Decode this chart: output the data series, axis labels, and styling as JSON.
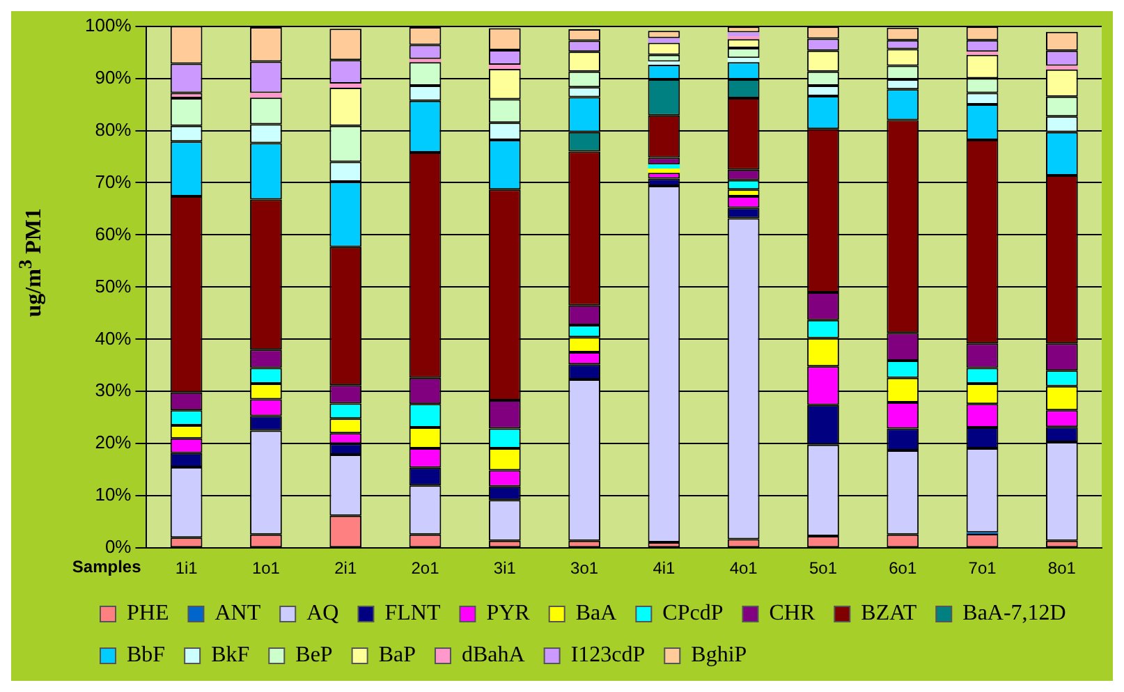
{
  "chart_data": {
    "type": "bar",
    "stacked": true,
    "xlabel": "Samples",
    "ylabel": "ug/m$^{3}$ PM1",
    "categories": [
      "1i1",
      "1o1",
      "2i1",
      "2o1",
      "3i1",
      "3o1",
      "4i1",
      "4o1",
      "5o1",
      "6o1",
      "7o1",
      "8o1"
    ],
    "ylim": [
      0,
      100
    ],
    "yticks": [
      {
        "value": 0,
        "label": "0%"
      },
      {
        "value": 10,
        "label": "10%"
      },
      {
        "value": 20,
        "label": "20%"
      },
      {
        "value": 30,
        "label": "30%"
      },
      {
        "value": 40,
        "label": "40%"
      },
      {
        "value": 50,
        "label": "50%"
      },
      {
        "value": 60,
        "label": "60%"
      },
      {
        "value": 70,
        "label": "70%"
      },
      {
        "value": 80,
        "label": "80%"
      },
      {
        "value": 90,
        "label": "90%"
      },
      {
        "value": 100,
        "label": "100%"
      }
    ],
    "grid": "y",
    "legend": "bottom",
    "series": [
      {
        "name": "PHE",
        "color": "#ff8080",
        "values": [
          2.0,
          2.6,
          6.2,
          2.6,
          1.4,
          1.4,
          1.1,
          1.7,
          2.3,
          2.6,
          2.7,
          1.4
        ]
      },
      {
        "name": "ANT",
        "color": "#0066cc",
        "values": [
          0,
          0,
          0,
          0,
          0,
          0,
          0,
          0,
          0,
          0,
          0.3,
          0
        ]
      },
      {
        "name": "AQ",
        "color": "#ccccff",
        "values": [
          13.5,
          19.9,
          11.7,
          9.4,
          7.8,
          30.9,
          68.3,
          61.5,
          17.5,
          16.1,
          16.1,
          18.9
        ]
      },
      {
        "name": "FLNT",
        "color": "#000080",
        "values": [
          2.7,
          2.8,
          2.1,
          3.4,
          2.6,
          2.9,
          1.4,
          2.0,
          7.6,
          4.2,
          4.0,
          2.9
        ]
      },
      {
        "name": "PYR",
        "color": "#ff00ff",
        "values": [
          2.8,
          3.2,
          2.0,
          3.7,
          3.1,
          2.3,
          1.1,
          2.2,
          7.4,
          5.0,
          4.5,
          3.2
        ]
      },
      {
        "name": "BaA",
        "color": "#ffff00",
        "values": [
          2.5,
          3.0,
          2.8,
          4.0,
          4.2,
          2.9,
          0.8,
          1.3,
          5.4,
          4.7,
          3.9,
          4.6
        ]
      },
      {
        "name": "CPcdP",
        "color": "#00ffff",
        "values": [
          2.9,
          3.0,
          2.9,
          4.5,
          3.8,
          2.3,
          0.8,
          1.8,
          3.5,
          3.3,
          3.0,
          3.0
        ]
      },
      {
        "name": "CHR",
        "color": "#800080",
        "values": [
          3.4,
          3.5,
          3.5,
          5.0,
          5.4,
          3.8,
          1.3,
          2.0,
          5.3,
          5.3,
          4.7,
          5.2
        ]
      },
      {
        "name": "BZAT",
        "color": "#800000",
        "values": [
          37.6,
          28.8,
          26.5,
          43.2,
          40.4,
          29.5,
          8.1,
          13.7,
          31.3,
          40.8,
          39.0,
          32.2
        ]
      },
      {
        "name": "BaA-7,12D",
        "color": "#008080",
        "values": [
          0,
          0,
          0,
          0,
          0,
          3.7,
          6.9,
          3.6,
          0,
          0,
          0,
          0
        ]
      },
      {
        "name": "BbF",
        "color": "#00ccff",
        "values": [
          10.5,
          10.8,
          12.5,
          9.9,
          9.5,
          6.7,
          2.8,
          3.3,
          6.3,
          5.9,
          6.8,
          8.3
        ]
      },
      {
        "name": "BkF",
        "color": "#ccffff",
        "values": [
          3.0,
          3.6,
          3.8,
          2.9,
          3.3,
          1.9,
          0.6,
          0.8,
          2.0,
          1.9,
          2.2,
          3.0
        ]
      },
      {
        "name": "BeP",
        "color": "#ccffcc",
        "values": [
          5.3,
          5.1,
          6.9,
          4.5,
          4.5,
          3.0,
          1.3,
          1.9,
          2.7,
          2.6,
          2.8,
          3.8
        ]
      },
      {
        "name": "BaP",
        "color": "#ffff99",
        "values": [
          0,
          0,
          7.3,
          0,
          5.8,
          3.8,
          2.3,
          1.7,
          4.0,
          3.2,
          4.5,
          5.2
        ]
      },
      {
        "name": "dBahA",
        "color": "#ff99cc",
        "values": [
          1.0,
          0.9,
          0.8,
          0.6,
          0.8,
          null,
          null,
          0.5,
          0,
          null,
          0.6,
          0.7
        ]
      },
      {
        "name": "I123cdP",
        "color": "#cc99ff",
        "values": [
          5.6,
          6.0,
          4.5,
          2.7,
          2.8,
          2.1,
          0.9,
          0.8,
          2.3,
          1.7,
          2.2,
          2.9
        ]
      },
      {
        "name": "BghiP",
        "color": "#ffcc99",
        "values": [
          7.2,
          6.6,
          6.0,
          3.4,
          4.2,
          2.2,
          1.4,
          1.1,
          2.3,
          2.4,
          2.6,
          3.6
        ]
      }
    ]
  }
}
